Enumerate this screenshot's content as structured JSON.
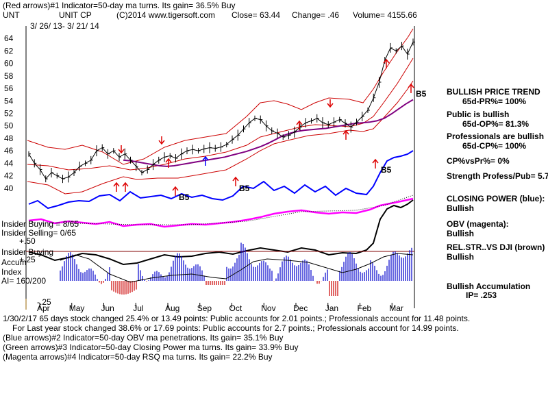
{
  "header": {
    "line1": "(Red arrows)#1 Indicator=50-day ma turns. Its gain= 36.5% Buy",
    "ticker": "UNT",
    "company": "UNIT CP",
    "copyright": "(C)2014 www.tigersoft.com",
    "close": "Close=  63.44",
    "change": "Change= .46",
    "volume": "Volume= 4155.66",
    "date_range": "3/ 26/ 13- 3/ 21/ 14"
  },
  "right_panel": {
    "trend_title": "BULLISH PRICE TREND",
    "pr": "65d-PR%= 100%",
    "public_label": "Public is bullish",
    "op": "65d-OP%= 81.3%",
    "pros_label": "Professionals are bullish",
    "cp": "65d-CP%= 100%",
    "cpvspr": "CP%vsPr%=  0%",
    "strength": "Strength Profess/Pub= 5.7",
    "closing_power_label": "CLOSING POWER (blue):",
    "closing_power_value": "Bullish",
    "obv_label": "OBV (magenta):",
    "obv_value": "Bullish",
    "relstr_label": "REL.STR..VS DJI (brown)",
    "relstr_value": "Bullish",
    "accum_label": "Bullish Accumulation",
    "accum_ip": "IP=  .253"
  },
  "left_labels": {
    "insider_buying": "Insider Buying = 8/65",
    "insider_selling": "Insider Selling= 0/65",
    "insider_buying2": "Insider Buying",
    "plus50": "+.50",
    "plus25": "+.25",
    "accum": "Accum",
    "index": "Index",
    "ai": "AI= 160/200",
    "minus25": "-.25"
  },
  "annotations": {
    "b5_a": "B5",
    "b5_b": "B5",
    "b5_c": "B5",
    "b5_d": "B5"
  },
  "footer": {
    "line1": "1/30/2/17 65 days stock changed  25.4% or  13.49 points:  Public accounts for  2.01 points.;  Professionals account for  11.48 points.",
    "line2": "For Last year stock changed  38.6% or  17.69 points:  Public accounts for  2.7 points.;  Professionals account for  14.99 points.",
    "line3": "(Blue arrows)#2 Indicator=50-day OBV ma penetrations. Its gain= 35.1% Buy",
    "line4": "(Green arrows)#3 Indicator=50-day Closing Power ma turns. Its gain= 33.9% Buy",
    "line5": "(Magenta arrows)#4 Indicator=50-day RSQ ma turns. Its gain= 22.2% Buy"
  },
  "colors": {
    "price": "#000000",
    "band": "#cc0000",
    "ma": "#800080",
    "closing_power": "#0000ff",
    "obv": "#ff00ff",
    "relstr": "#000000",
    "accum_pos": "#0000cc",
    "accum_neg": "#cc0000",
    "arrow_red": "#dd0000",
    "arrow_blue": "#0000ff"
  },
  "chart_data": {
    "type": "line",
    "ylim": [
      38,
      66
    ],
    "y_ticks": [
      "64",
      "62",
      "60",
      "58",
      "56",
      "54",
      "52",
      "50",
      "48",
      "46",
      "44",
      "42",
      "40"
    ],
    "x_months": [
      "Apr",
      "May",
      "Jun",
      "Jul",
      "Aug",
      "Sep",
      "Oct",
      "Nov",
      "Dec",
      "Jan",
      "Feb",
      "Mar"
    ],
    "price": [
      45.5,
      44.0,
      43.0,
      41.5,
      42.5,
      42.0,
      41.5,
      41.8,
      42.5,
      43.5,
      44.0,
      44.5,
      46.0,
      46.5,
      45.5,
      46.0,
      45.0,
      45.5,
      44.5,
      43.5,
      42.5,
      43.0,
      43.8,
      44.5,
      45.0,
      45.2,
      44.8,
      45.5,
      46.0,
      46.2,
      46.0,
      46.3,
      46.5,
      46.4,
      46.6,
      47.0,
      47.8,
      48.5,
      49.5,
      50.5,
      51.2,
      51.0,
      50.0,
      49.2,
      48.8,
      48.2,
      48.5,
      49.0,
      49.8,
      50.5,
      50.8,
      51.2,
      50.5,
      50.2,
      50.6,
      51.0,
      50.4,
      49.8,
      50.6,
      51.5,
      52.5,
      54.5,
      57.0,
      60.5,
      62.5,
      62.0,
      62.8,
      61.5,
      63.44
    ],
    "ma50": [
      44.5,
      44.4,
      44.2,
      44.0,
      43.8,
      43.6,
      43.5,
      43.6,
      43.8,
      44.0,
      44.2,
      44.4,
      44.6,
      44.8,
      45.0,
      45.3,
      45.6,
      45.9,
      46.3,
      46.7,
      47.2,
      47.8,
      48.4,
      48.8,
      49.1,
      49.3,
      49.4,
      49.5,
      49.6,
      49.8,
      50.0,
      50.2,
      50.4,
      50.5,
      50.6,
      50.8,
      51.2,
      51.9,
      52.7,
      53.5,
      54.2
    ],
    "series": [
      {
        "name": "CLOSING POWER (blue)"
      },
      {
        "name": "OBV (magenta)"
      },
      {
        "name": "REL.STR..VS DJI (brown)"
      }
    ]
  }
}
